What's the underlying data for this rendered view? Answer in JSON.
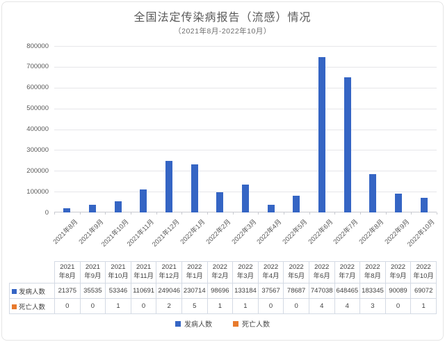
{
  "chart_data": {
    "type": "bar",
    "title": "全国法定传染病报告（流感）情况",
    "subtitle": "（2021年8月-2022年10月）",
    "categories": [
      "2021年8月",
      "2021年9月",
      "2021年10月",
      "2021年11月",
      "2021年12月",
      "2022年1月",
      "2022年2月",
      "2022年3月",
      "2022年4月",
      "2022年5月",
      "2022年6月",
      "2022年7月",
      "2022年8月",
      "2022年9月",
      "2022年10月"
    ],
    "series": [
      {
        "name": "发病人数",
        "color": "#3565c4",
        "values": [
          21375,
          35535,
          53346,
          110691,
          249046,
          230714,
          98696,
          133184,
          37567,
          78687,
          747038,
          648465,
          183345,
          90089,
          69072
        ]
      },
      {
        "name": "死亡人数",
        "color": "#e87a2d",
        "values": [
          0,
          0,
          1,
          0,
          2,
          5,
          1,
          1,
          0,
          0,
          4,
          4,
          3,
          0,
          1
        ]
      }
    ],
    "xlabel": "",
    "ylabel": "",
    "ylim": [
      0,
      800000
    ],
    "ytick_step": 100000,
    "grid": true,
    "legend_position": "bottom",
    "x_label_rotation_deg": -45,
    "data_table_shown": true
  },
  "colors": {
    "series_incidence": "#3565c4",
    "series_deaths": "#e87a2d",
    "title_text": "#595959",
    "axis_text": "#595959",
    "gridline": "#e6e6e9",
    "axis_line": "#c8cad0",
    "table_border": "#d4dae4",
    "table_text": "#3f3f3f",
    "frame_border": "#e5e5e5",
    "background": "#ffffff"
  }
}
